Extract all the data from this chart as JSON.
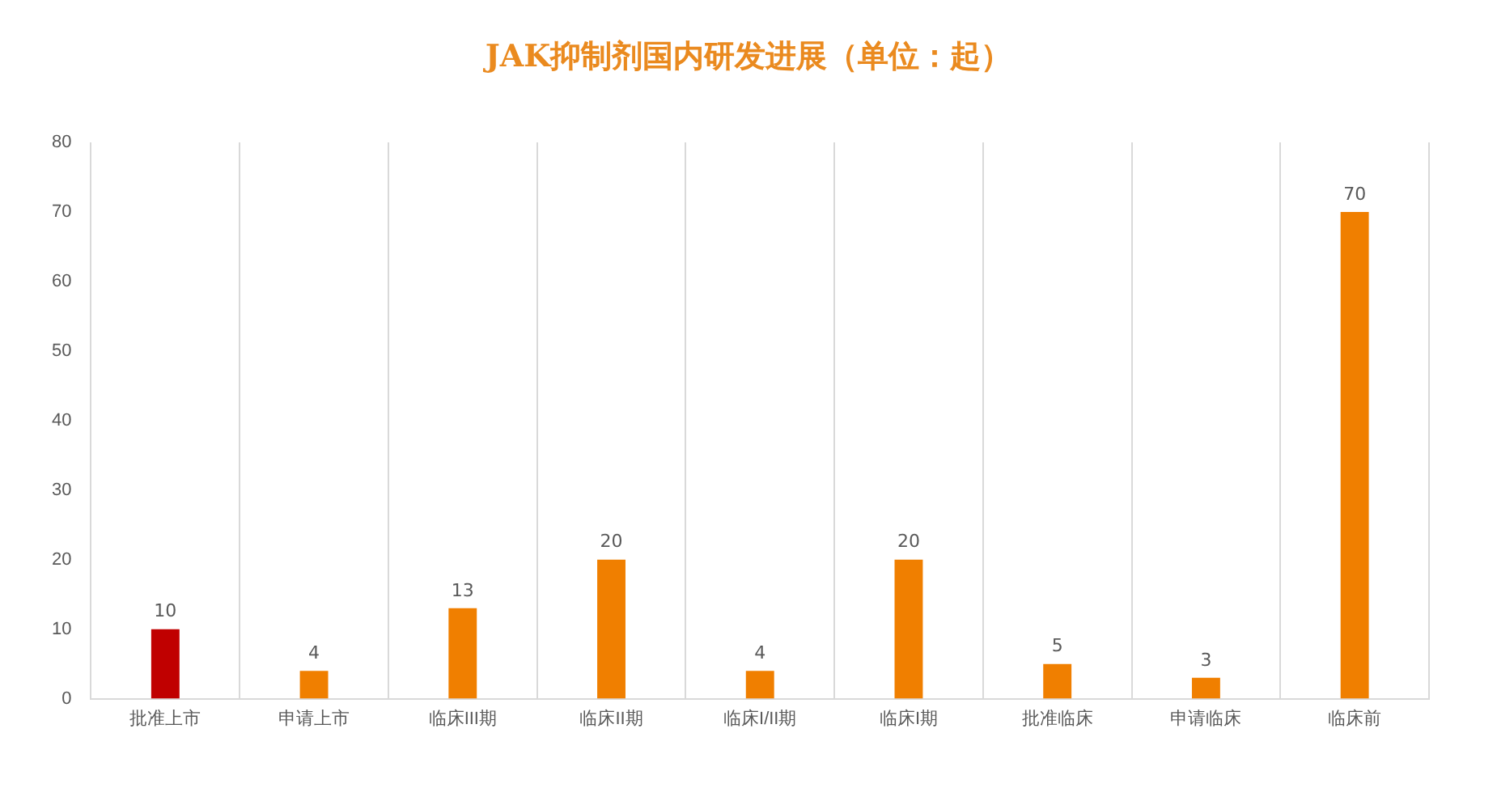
{
  "chart_data": {
    "type": "bar",
    "title": "JAK抑制剂国内研发进展（单位：起）",
    "categories": [
      "批准上市",
      "申请上市",
      "临床III期",
      "临床II期",
      "临床I/II期",
      "临床I期",
      "批准临床",
      "申请临床",
      "临床前"
    ],
    "values": [
      10,
      4,
      13,
      20,
      4,
      20,
      5,
      3,
      70
    ],
    "colors": [
      "#c00000",
      "#f07f00",
      "#f07f00",
      "#f07f00",
      "#f07f00",
      "#f07f00",
      "#f07f00",
      "#f07f00",
      "#f07f00"
    ],
    "ylim": [
      0,
      80
    ],
    "yticks": [
      0,
      10,
      20,
      30,
      40,
      50,
      60,
      70,
      80
    ],
    "grid": "x",
    "data_labels": true,
    "legend": false
  }
}
